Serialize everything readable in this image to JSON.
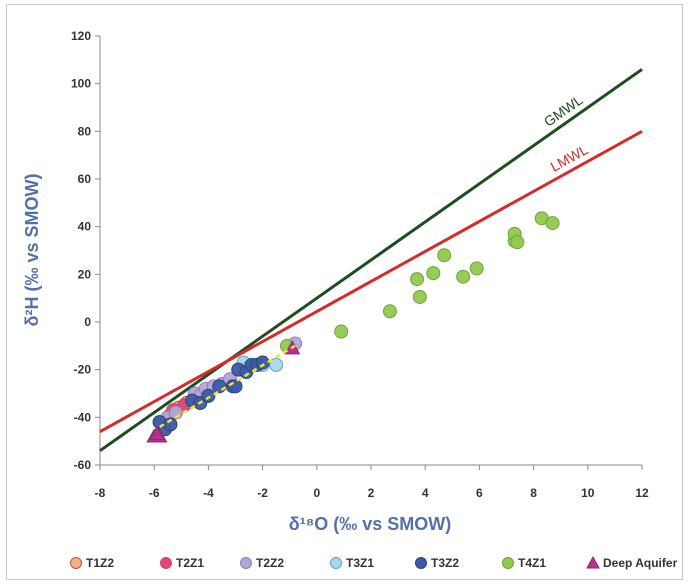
{
  "chart_data": {
    "type": "scatter",
    "xlabel": "δ¹⁸O (‰ vs SMOW)",
    "ylabel": "δ²H (‰ vs SMOW)",
    "xlim": [
      -8,
      12
    ],
    "ylim": [
      -60,
      120
    ],
    "x_ticks": [
      -8,
      -6,
      -4,
      -2,
      0,
      2,
      4,
      6,
      8,
      10,
      12
    ],
    "y_ticks": [
      -60,
      -40,
      -20,
      0,
      20,
      40,
      60,
      80,
      100,
      120
    ],
    "grid": false,
    "legend_position": "bottom",
    "lines": [
      {
        "name": "GMWL",
        "x": [
          -8,
          12
        ],
        "y": [
          -54,
          106
        ],
        "color": "#1f4d1f"
      },
      {
        "name": "LMWL",
        "x": [
          -8,
          12
        ],
        "y": [
          -46,
          80
        ],
        "color": "#d52b2b"
      }
    ],
    "trendline": {
      "x": [
        -5.8,
        -0.8
      ],
      "y": [
        -44,
        -10
      ],
      "color": "#f2e61e"
    },
    "series": [
      {
        "name": "T1Z2",
        "marker": "circle",
        "color": "#f4b183",
        "edge": "#c0504d",
        "x": [
          -5.4,
          -5.1,
          -4.8
        ],
        "y": [
          -39,
          -36,
          -34
        ]
      },
      {
        "name": "T2Z1",
        "marker": "circle",
        "color": "#e0457b",
        "edge": "#c0504d",
        "x": [
          -5.3,
          -4.9
        ],
        "y": [
          -37,
          -35
        ]
      },
      {
        "name": "T2Z2",
        "marker": "circle",
        "color": "#b4a7d6",
        "edge": "#8e7cc3",
        "x": [
          -5.8,
          -5.5,
          -5.2,
          -4.6,
          -4.5,
          -4.3,
          -4.1,
          -3.8,
          -3.5,
          -3.2,
          -0.8
        ],
        "y": [
          -42,
          -40,
          -38,
          -33,
          -30,
          -31,
          -28,
          -27,
          -26,
          -24,
          -9
        ]
      },
      {
        "name": "T3Z1",
        "marker": "circle",
        "color": "#a9d8ea",
        "edge": "#5ba3c4",
        "x": [
          -2.7,
          -2.5,
          -2.0,
          -1.5
        ],
        "y": [
          -17,
          -19,
          -18,
          -18
        ]
      },
      {
        "name": "T3Z2",
        "marker": "circle",
        "color": "#3c5aa6",
        "edge": "#2a4275",
        "x": [
          -5.8,
          -5.6,
          -5.4,
          -4.6,
          -4.3,
          -4.0,
          -3.6,
          -3.1,
          -3.0,
          -2.9,
          -2.6,
          -2.4,
          -2.2,
          -2.0
        ],
        "y": [
          -42,
          -45,
          -43,
          -33,
          -34,
          -31,
          -27,
          -27,
          -27,
          -20,
          -21,
          -18,
          -18,
          -17
        ]
      },
      {
        "name": "T4Z1",
        "marker": "circle",
        "color": "#92c94f",
        "edge": "#6fa33a",
        "x": [
          -1.1,
          0.9,
          2.7,
          3.7,
          3.8,
          4.3,
          4.7,
          5.4,
          5.9,
          7.3,
          7.3,
          7.4,
          8.3,
          8.7
        ],
        "y": [
          -10,
          -4,
          4.5,
          18,
          10.5,
          20.5,
          28,
          19,
          22.5,
          34,
          37,
          33.5,
          43.5,
          41.5
        ]
      },
      {
        "name": "Deep Aquifer",
        "marker": "triangle",
        "color": "#b5338d",
        "edge": "#8b2870",
        "x": [
          -6.0,
          -5.8,
          -5.9,
          -0.9
        ],
        "y": [
          -48,
          -48,
          -47,
          -11
        ]
      }
    ]
  }
}
